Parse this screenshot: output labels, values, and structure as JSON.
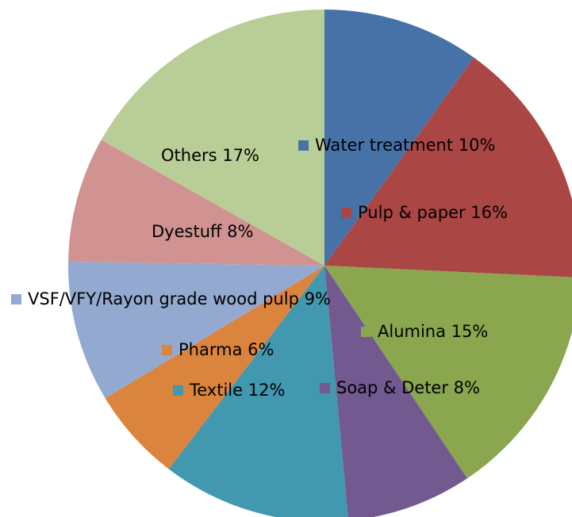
{
  "chart_data": {
    "type": "pie",
    "categories": [
      "Water treatment",
      "Pulp & paper",
      "Alumina",
      "Soap & Deter",
      "Textile",
      "Pharma",
      "VSF/VFY/Rayon grade wood pulp",
      "Dyestuff",
      "Others"
    ],
    "values": [
      10,
      16,
      15,
      8,
      12,
      6,
      9,
      8,
      17
    ],
    "value_labels": [
      "10%",
      "16%",
      "15%",
      "8%",
      "12%",
      "6%",
      "9%",
      "8%",
      "17%"
    ],
    "colors": [
      "#4672a8",
      "#aa4644",
      "#8aa64f",
      "#725990",
      "#4298af",
      "#db843d",
      "#93a9cf",
      "#d09391",
      "#b9cd96"
    ]
  }
}
